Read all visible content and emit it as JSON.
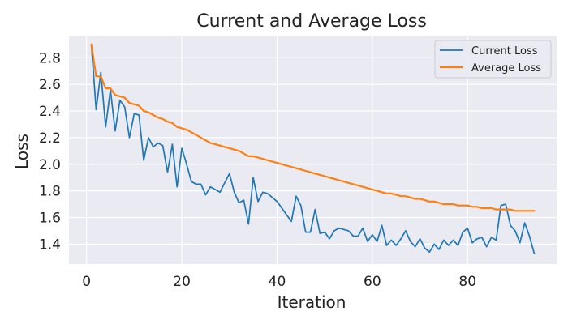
{
  "chart_data": {
    "type": "line",
    "title": "Current and Average Loss",
    "xlabel": "Iteration",
    "ylabel": "Loss",
    "xlim": [
      -3.7,
      98.7
    ],
    "ylim": [
      1.25,
      2.96
    ],
    "xticks": [
      0,
      20,
      40,
      60,
      80
    ],
    "yticks": [
      1.4,
      1.6,
      1.8,
      2.0,
      2.2,
      2.4,
      2.6,
      2.8
    ],
    "ytick_labels": [
      "1.4",
      "1.6",
      "1.8",
      "2.0",
      "2.2",
      "2.4",
      "2.6",
      "2.8"
    ],
    "grid": true,
    "legend_position": "top-right",
    "background": "#eaeaf2",
    "series": [
      {
        "name": "Current Loss",
        "color": "#1f77b4",
        "x": [
          1,
          2,
          3,
          4,
          5,
          6,
          7,
          8,
          9,
          10,
          11,
          12,
          13,
          14,
          15,
          16,
          17,
          18,
          19,
          20,
          21,
          22,
          23,
          24,
          25,
          26,
          27,
          28,
          29,
          30,
          31,
          32,
          33,
          34,
          35,
          36,
          37,
          38,
          39,
          40,
          41,
          42,
          43,
          44,
          45,
          46,
          47,
          48,
          49,
          50,
          51,
          52,
          53,
          54,
          55,
          56,
          57,
          58,
          59,
          60,
          61,
          62,
          63,
          64,
          65,
          66,
          67,
          68,
          69,
          70,
          71,
          72,
          73,
          74,
          75,
          76,
          77,
          78,
          79,
          80,
          81,
          82,
          83,
          84,
          85,
          86,
          87,
          88,
          89,
          90,
          91,
          92,
          93,
          94
        ],
        "values": [
          2.9,
          2.41,
          2.69,
          2.28,
          2.56,
          2.25,
          2.48,
          2.43,
          2.2,
          2.38,
          2.37,
          2.03,
          2.2,
          2.13,
          2.16,
          2.14,
          1.94,
          2.15,
          1.83,
          2.12,
          2.0,
          1.87,
          1.85,
          1.85,
          1.77,
          1.83,
          1.81,
          1.79,
          1.86,
          1.93,
          1.79,
          1.71,
          1.73,
          1.55,
          1.9,
          1.72,
          1.79,
          1.78,
          1.75,
          1.72,
          1.67,
          1.62,
          1.57,
          1.76,
          1.69,
          1.49,
          1.49,
          1.66,
          1.48,
          1.49,
          1.44,
          1.5,
          1.52,
          1.51,
          1.5,
          1.46,
          1.46,
          1.52,
          1.42,
          1.47,
          1.42,
          1.54,
          1.39,
          1.43,
          1.39,
          1.44,
          1.5,
          1.42,
          1.38,
          1.44,
          1.37,
          1.34,
          1.4,
          1.36,
          1.43,
          1.39,
          1.43,
          1.39,
          1.49,
          1.52,
          1.41,
          1.44,
          1.45,
          1.38,
          1.45,
          1.43,
          1.69,
          1.7,
          1.54,
          1.5,
          1.41,
          1.56,
          1.46,
          1.33
        ]
      },
      {
        "name": "Average Loss",
        "color": "#ff7f0e",
        "x": [
          1,
          2,
          3,
          4,
          5,
          6,
          7,
          8,
          9,
          10,
          11,
          12,
          13,
          14,
          15,
          16,
          17,
          18,
          19,
          20,
          21,
          22,
          23,
          24,
          25,
          26,
          27,
          28,
          29,
          30,
          31,
          32,
          33,
          34,
          35,
          36,
          37,
          38,
          39,
          40,
          41,
          42,
          43,
          44,
          45,
          46,
          47,
          48,
          49,
          50,
          51,
          52,
          53,
          54,
          55,
          56,
          57,
          58,
          59,
          60,
          61,
          62,
          63,
          64,
          65,
          66,
          67,
          68,
          69,
          70,
          71,
          72,
          73,
          74,
          75,
          76,
          77,
          78,
          79,
          80,
          81,
          82,
          83,
          84,
          85,
          86,
          87,
          88,
          89,
          90,
          91,
          92,
          93,
          94
        ],
        "values": [
          2.9,
          2.66,
          2.66,
          2.57,
          2.57,
          2.52,
          2.51,
          2.5,
          2.46,
          2.45,
          2.44,
          2.4,
          2.39,
          2.37,
          2.35,
          2.34,
          2.32,
          2.31,
          2.28,
          2.27,
          2.26,
          2.24,
          2.22,
          2.2,
          2.18,
          2.16,
          2.15,
          2.14,
          2.13,
          2.12,
          2.11,
          2.1,
          2.08,
          2.06,
          2.06,
          2.05,
          2.04,
          2.03,
          2.02,
          2.01,
          2.0,
          1.99,
          1.98,
          1.97,
          1.96,
          1.95,
          1.94,
          1.93,
          1.92,
          1.91,
          1.9,
          1.89,
          1.88,
          1.87,
          1.86,
          1.85,
          1.84,
          1.83,
          1.82,
          1.81,
          1.8,
          1.79,
          1.78,
          1.78,
          1.77,
          1.76,
          1.76,
          1.75,
          1.74,
          1.74,
          1.73,
          1.72,
          1.72,
          1.71,
          1.7,
          1.7,
          1.7,
          1.69,
          1.69,
          1.69,
          1.68,
          1.68,
          1.67,
          1.67,
          1.67,
          1.66,
          1.66,
          1.66,
          1.66,
          1.65,
          1.65,
          1.65,
          1.65,
          1.65
        ]
      }
    ]
  }
}
